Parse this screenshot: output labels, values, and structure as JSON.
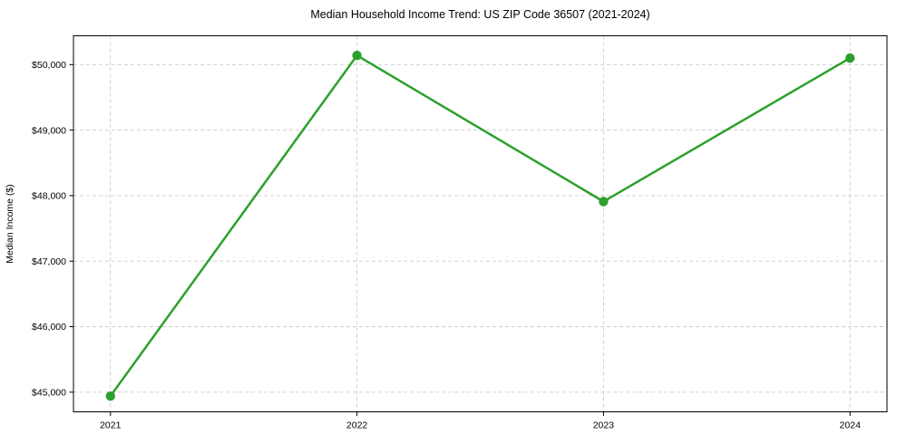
{
  "chart_data": {
    "type": "line",
    "title": "Median Household Income Trend: US ZIP Code 36507 (2021-2024)",
    "xlabel": "",
    "ylabel": "Median Income ($)",
    "x": [
      2021,
      2022,
      2023,
      2024
    ],
    "categories": [
      "2021",
      "2022",
      "2023",
      "2024"
    ],
    "series": [
      {
        "values": [
          44940,
          50140,
          47910,
          50100
        ],
        "color": "#2ca02c",
        "marker": "circle"
      }
    ],
    "yticks": [
      45000,
      46000,
      47000,
      48000,
      49000,
      50000
    ],
    "ytick_labels": [
      "$45,000",
      "$46,000",
      "$47,000",
      "$48,000",
      "$49,000",
      "$50,000"
    ],
    "xlim": [
      2020.85,
      2024.15
    ],
    "ylim": [
      44700,
      50440
    ],
    "grid": true,
    "grid_color": "#cccccc",
    "axis_color": "#000000",
    "background_color": "#ffffff",
    "legend_position": "none"
  }
}
